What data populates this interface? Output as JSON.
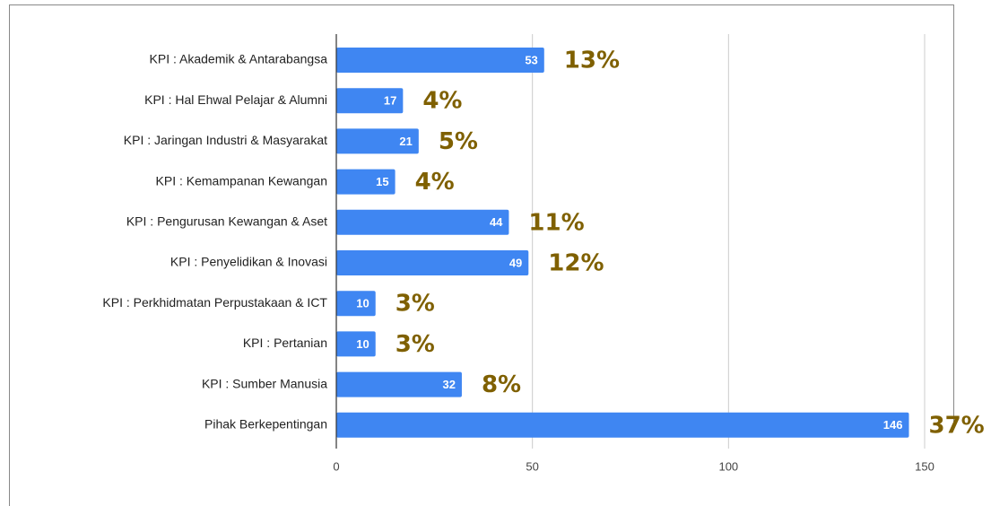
{
  "chart_data": {
    "type": "bar",
    "orientation": "horizontal",
    "categories": [
      "KPI : Akademik & Antarabangsa",
      "KPI : Hal Ehwal Pelajar & Alumni",
      "KPI : Jaringan Industri & Masyarakat",
      "KPI : Kemampanan Kewangan",
      "KPI : Pengurusan Kewangan & Aset",
      "KPI : Penyelidikan & Inovasi",
      "KPI : Perkhidmatan Perpustakaan & ICT",
      "KPI : Pertanian",
      "KPI : Sumber Manusia",
      "Pihak Berkepentingan"
    ],
    "values": [
      53,
      17,
      21,
      15,
      44,
      49,
      10,
      10,
      32,
      146
    ],
    "annotations": [
      "13%",
      "4%",
      "5%",
      "4%",
      "11%",
      "12%",
      "3%",
      "3%",
      "8%",
      "37%"
    ],
    "color": "#3f86f2",
    "xlim": [
      0,
      150
    ],
    "xticks": [
      0,
      50,
      100,
      150
    ],
    "grid": true
  }
}
